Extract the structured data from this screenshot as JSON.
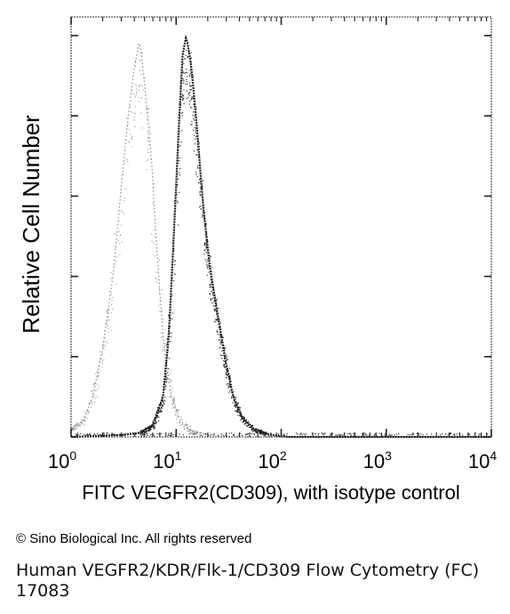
{
  "chart_data": {
    "type": "area",
    "xscale": "log",
    "xlim": [
      1,
      10000
    ],
    "ylim": [
      0,
      1
    ],
    "xlabel": "FITC VEGFR2(CD309), with isotype control",
    "ylabel": "Relative Cell Number",
    "x_ticks": [
      {
        "base": "10",
        "exp": "0"
      },
      {
        "base": "10",
        "exp": "1"
      },
      {
        "base": "10",
        "exp": "2"
      },
      {
        "base": "10",
        "exp": "3"
      },
      {
        "base": "10",
        "exp": "4"
      }
    ],
    "series": [
      {
        "role": "isotype control",
        "style": "light dotted gray",
        "color": "#8a8a8a",
        "x": [
          1.0,
          1.3,
          1.6,
          2.0,
          2.5,
          3.0,
          3.5,
          4.0,
          4.5,
          5.0,
          5.8,
          6.5,
          7.5,
          9.0,
          11,
          14,
          20,
          40,
          100,
          1000,
          10000
        ],
        "y": [
          0.02,
          0.04,
          0.1,
          0.22,
          0.4,
          0.62,
          0.8,
          0.92,
          0.99,
          0.88,
          0.7,
          0.48,
          0.25,
          0.1,
          0.04,
          0.015,
          0.005,
          0.0,
          0.0,
          0.0,
          0.0
        ]
      },
      {
        "role": "VEGFR2 (CD309)",
        "style": "dark stippled",
        "color": "#1a1a1a",
        "x": [
          1.0,
          3.0,
          4.5,
          6.0,
          7.5,
          8.5,
          9.5,
          10.5,
          11.5,
          12.5,
          14,
          16,
          18,
          21,
          25,
          30,
          35,
          42,
          55,
          80,
          120,
          1000,
          10000
        ],
        "y": [
          0.0,
          0.005,
          0.01,
          0.03,
          0.1,
          0.25,
          0.5,
          0.75,
          0.95,
          1.0,
          0.92,
          0.75,
          0.58,
          0.42,
          0.3,
          0.18,
          0.1,
          0.05,
          0.02,
          0.005,
          0.0,
          0.0,
          0.0
        ]
      }
    ]
  },
  "footer": {
    "copyright": "© Sino Biological Inc. All rights reserved",
    "caption_line1": "Human VEGFR2/KDR/Flk-1/CD309 Flow Cytometry (FC)",
    "caption_line2": "17083"
  }
}
